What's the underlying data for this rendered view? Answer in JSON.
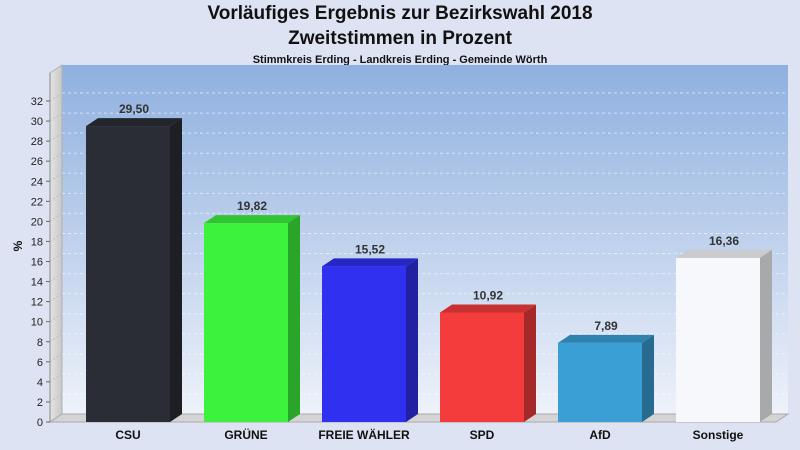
{
  "header": {
    "title_line1": "Vorläufiges Ergebnis zur Bezirkswahl 2018",
    "title_line2": "Zweitstimmen in Prozent",
    "subtitle": "Stimmkreis Erding - Landkreis Erding - Gemeinde Wörth"
  },
  "chart_data": {
    "type": "bar",
    "title": "Vorläufiges Ergebnis zur Bezirkswahl 2018 / Zweitstimmen in Prozent",
    "subtitle": "Stimmkreis Erding - Landkreis Erding - Gemeinde Wörth",
    "xlabel": "",
    "ylabel": "%",
    "ylim": [
      0,
      32
    ],
    "yticks": [
      0,
      2,
      4,
      6,
      8,
      10,
      12,
      14,
      16,
      18,
      20,
      22,
      24,
      26,
      28,
      30,
      32
    ],
    "grid": true,
    "categories": [
      "CSU",
      "GRÜNE",
      "FREIE WÄHLER",
      "SPD",
      "AfD",
      "Sonstige"
    ],
    "values": [
      29.5,
      19.82,
      15.52,
      10.92,
      7.89,
      16.36
    ],
    "value_labels": [
      "29,50",
      "19,82",
      "15,52",
      "10,92",
      "7,89",
      "16,36"
    ],
    "colors": [
      "#2a2d35",
      "#3cf23c",
      "#3030f0",
      "#f43c3c",
      "#3a9fd4",
      "#f6f8fc"
    ]
  }
}
